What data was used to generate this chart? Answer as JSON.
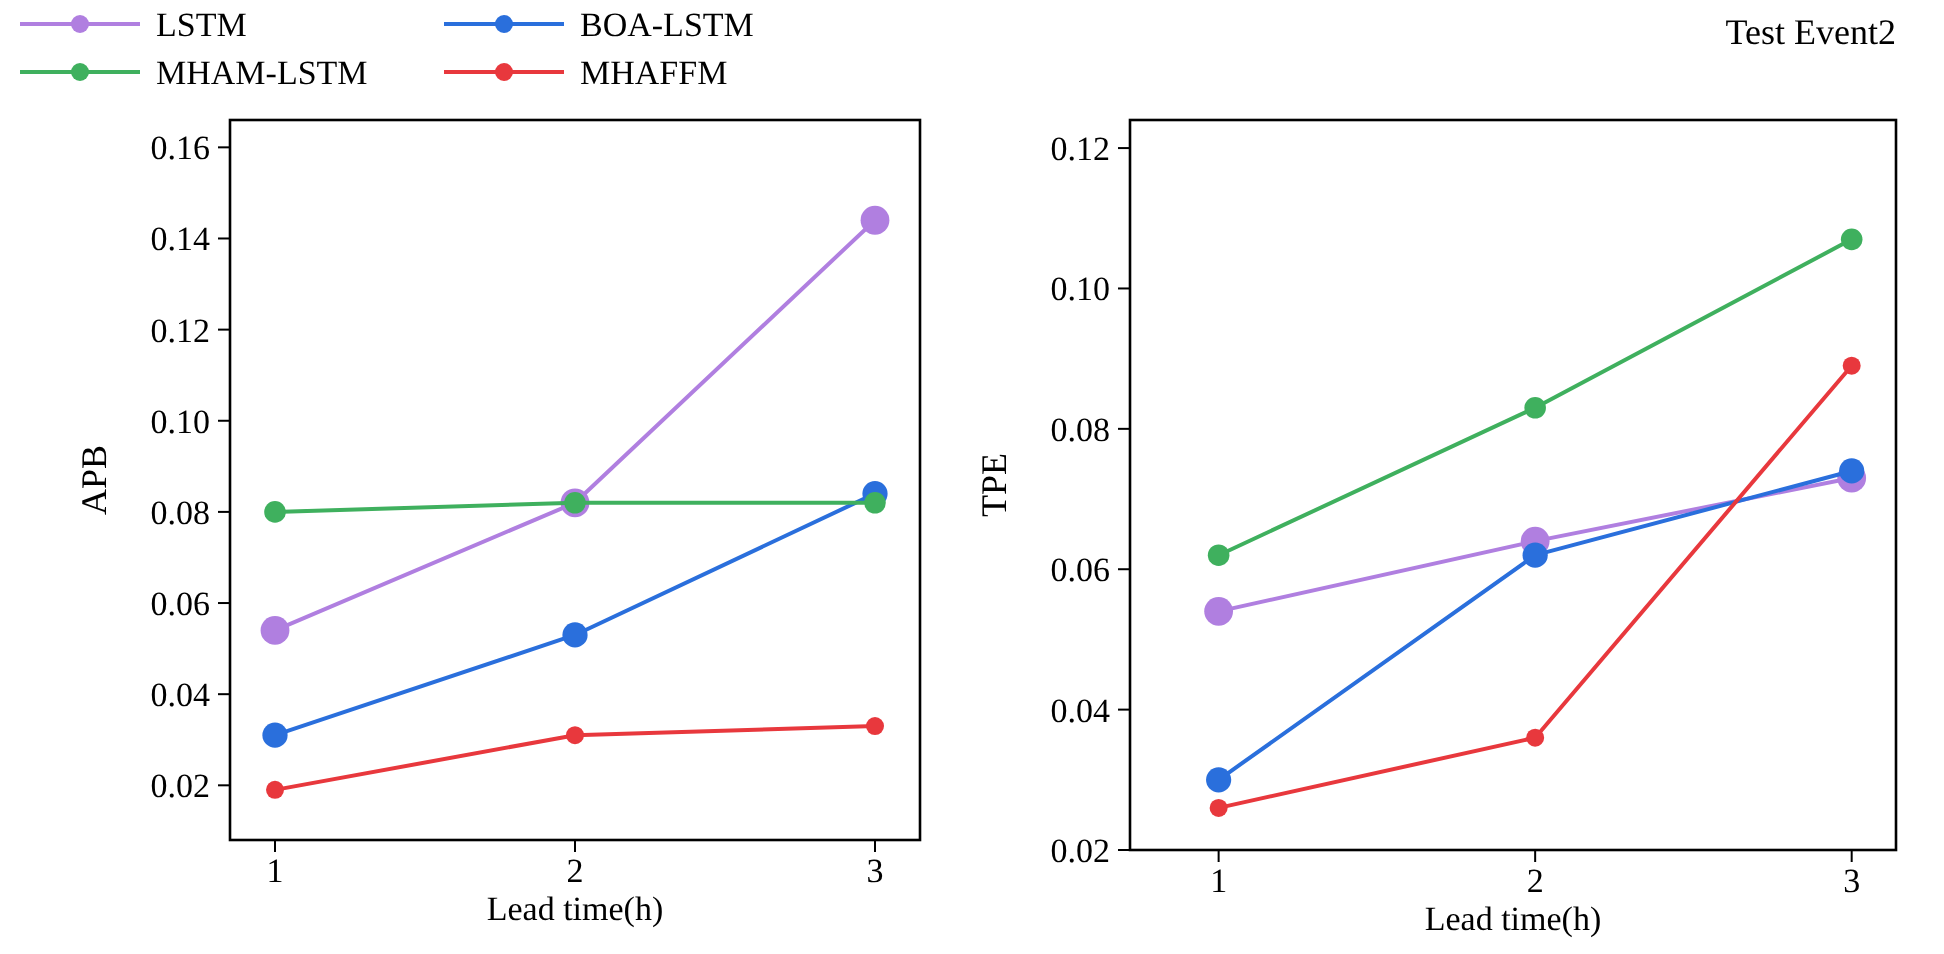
{
  "chart_data": [
    {
      "type": "line",
      "xlabel": "Lead time(h)",
      "ylabel": "APB",
      "x": [
        1,
        2,
        3
      ],
      "xlim": [
        0.85,
        3.15
      ],
      "xticks": [
        1,
        2,
        3
      ],
      "ylim": [
        0.008,
        0.166
      ],
      "yticks": [
        {
          "value": 0.02,
          "label": "0.02"
        },
        {
          "value": 0.04,
          "label": "0.04"
        },
        {
          "value": 0.06,
          "label": "0.06"
        },
        {
          "value": 0.08,
          "label": "0.08"
        },
        {
          "value": 0.1,
          "label": "0.10"
        },
        {
          "value": 0.12,
          "label": "0.12"
        },
        {
          "value": 0.14,
          "label": "0.14"
        },
        {
          "value": 0.16,
          "label": "0.16"
        }
      ],
      "marker": "circle",
      "legend": "top",
      "series": [
        {
          "name": "LSTM",
          "color": "#b07fe0",
          "values": [
            0.054,
            0.082,
            0.144
          ]
        },
        {
          "name": "BOA-LSTM",
          "color": "#2a6fdc",
          "values": [
            0.031,
            0.053,
            0.084
          ]
        },
        {
          "name": "MHAM-LSTM",
          "color": "#3fb05e",
          "values": [
            0.08,
            0.082,
            0.082
          ]
        },
        {
          "name": "MHAFFM",
          "color": "#e8383d",
          "values": [
            0.019,
            0.031,
            0.033
          ]
        }
      ]
    },
    {
      "type": "line",
      "title": "Test Event2",
      "xlabel": "Lead time(h)",
      "ylabel": "TPE",
      "x": [
        1,
        2,
        3
      ],
      "xlim": [
        0.72,
        3.14
      ],
      "xticks": [
        1,
        2,
        3
      ],
      "ylim": [
        0.02,
        0.124
      ],
      "yticks": [
        {
          "value": 0.02,
          "label": "0.02"
        },
        {
          "value": 0.04,
          "label": "0.04"
        },
        {
          "value": 0.06,
          "label": "0.06"
        },
        {
          "value": 0.08,
          "label": "0.08"
        },
        {
          "value": 0.1,
          "label": "0.10"
        },
        {
          "value": 0.12,
          "label": "0.12"
        }
      ],
      "marker": "circle",
      "series": [
        {
          "color": "#b07fe0",
          "values": [
            0.054,
            0.064,
            0.073
          ]
        },
        {
          "color": "#2a6fdc",
          "values": [
            0.03,
            0.062,
            0.074
          ]
        },
        {
          "color": "#3fb05e",
          "values": [
            0.062,
            0.083,
            0.107
          ]
        },
        {
          "color": "#e8383d",
          "values": [
            0.026,
            0.036,
            0.089
          ]
        }
      ]
    }
  ]
}
